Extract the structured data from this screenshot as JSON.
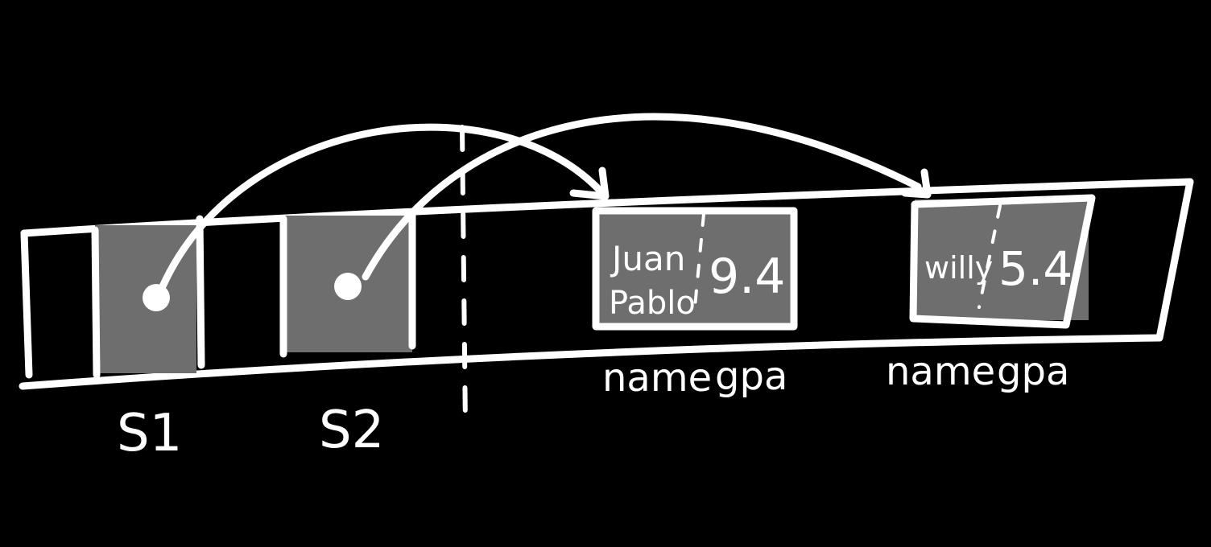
{
  "colors": {
    "background": "#000000",
    "ink": "#ffffff",
    "cell_fill": "#6e6e6e"
  },
  "pointers": [
    {
      "label": "S1"
    },
    {
      "label": "S2"
    }
  ],
  "structs": [
    {
      "name": "Juan Pablo",
      "name_lines": [
        "Juan",
        "Pablo"
      ],
      "gpa": "9.4",
      "field_labels": [
        "name",
        "gpa"
      ]
    },
    {
      "name": "willy",
      "name_lines": [
        "willy"
      ],
      "gpa": "5.4",
      "field_labels": [
        "name",
        "gpa"
      ]
    }
  ]
}
